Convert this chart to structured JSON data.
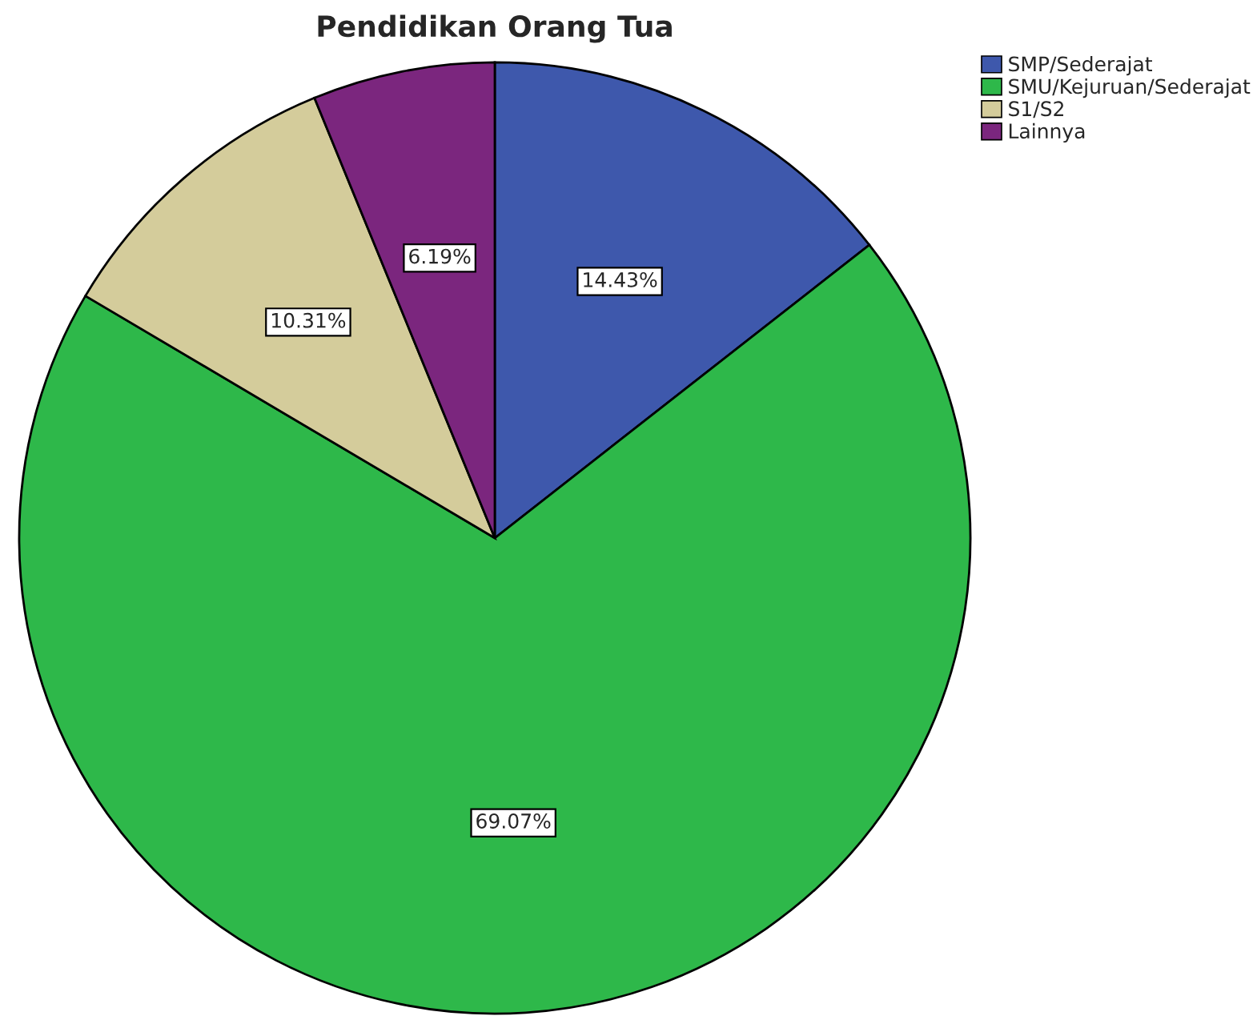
{
  "chart_data": {
    "type": "pie",
    "title": "Pendidikan Orang Tua",
    "categories": [
      "SMP/Sederajat",
      "SMU/Kejuruan/Sederajat",
      "S1/S2",
      "Lainnya"
    ],
    "values": [
      14.43,
      69.07,
      10.31,
      6.19
    ],
    "value_labels": [
      "14.43%",
      "69.07%",
      "10.31%",
      "6.19%"
    ],
    "colors": [
      "#3e58ac",
      "#2eb84a",
      "#d4cc9b",
      "#7b267e"
    ],
    "legend": "top right"
  }
}
